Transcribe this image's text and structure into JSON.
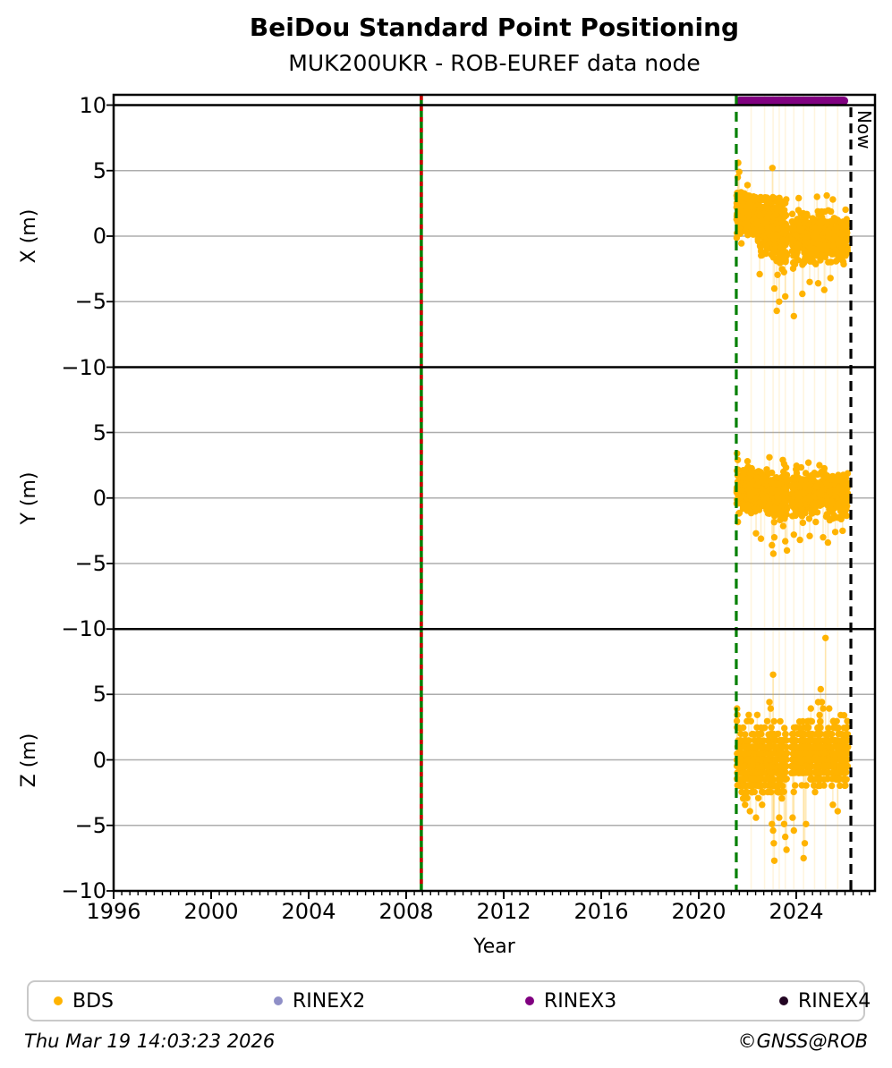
{
  "page": {
    "title": "BeiDou Standard Point Positioning",
    "subtitle": "MUK200UKR - ROB-EUREF data node"
  },
  "footer": {
    "generated": "Thu Mar 19 14:03:23 2026",
    "credit": "©GNSS@ROB"
  },
  "legend": {
    "items": [
      {
        "label": "BDS",
        "color": "#FFB300"
      },
      {
        "label": "RINEX2",
        "color": "#8F8FC7"
      },
      {
        "label": "RINEX3",
        "color": "#800080"
      },
      {
        "label": "RINEX4",
        "color": "#230523"
      }
    ]
  },
  "chart_data": {
    "type": "scatter",
    "title": "BeiDou Standard Point Positioning",
    "subtitle": "MUK200UKR - ROB-EUREF data node",
    "xlabel": "Year",
    "series_name": "BDS",
    "point_color": "#FFB300",
    "grid": "horizontal-gray",
    "grid_color": "#ADADAD",
    "x_range": [
      1995.95,
      2027.23
    ],
    "x_major_ticks": [
      1996,
      2000,
      2004,
      2008,
      2012,
      2016,
      2020,
      2024
    ],
    "x_minor_step_years": 0.33333,
    "now_label": "Now",
    "seed": 42,
    "vlines": [
      {
        "x": 2008.62,
        "color": "#008000",
        "overlay_color": "#CC0000",
        "style": "solid-green-with-red-dashes"
      },
      {
        "x": 2021.54,
        "color": "#008000",
        "style": "dashed"
      },
      {
        "x": 2026.24,
        "color": "#000000",
        "style": "dashed",
        "label": "Now"
      }
    ],
    "availability_bars": [
      {
        "series": "RINEX3",
        "color": "#800080",
        "x_start": 2021.5,
        "x_end": 2026.13,
        "y": 10.4
      }
    ],
    "faint_line_xs": [
      2022.15,
      2022.7,
      2023.05,
      2023.3,
      2023.55,
      2023.9,
      2024.3,
      2024.75,
      2025.2,
      2025.7
    ],
    "subplots": [
      {
        "ylabel": "X (m)",
        "ylim": [
          -10,
          10.75
        ],
        "yticks": [
          10,
          5,
          0,
          -5,
          -10
        ],
        "segments": [
          {
            "t0": 2021.55,
            "t1": 2021.75,
            "n": 90,
            "mean": 1.7,
            "sd": 0.8,
            "lo": -0.3,
            "hi": 3.4
          },
          {
            "t0": 2021.75,
            "t1": 2022.5,
            "n": 230,
            "mean": 1.5,
            "sd": 0.8,
            "lo": -1.8,
            "hi": 3.3
          },
          {
            "t0": 2022.5,
            "t1": 2023.05,
            "n": 170,
            "mean": 0.9,
            "sd": 1.1,
            "lo": -2.2,
            "hi": 3.2
          },
          {
            "t0": 2023.05,
            "t1": 2023.62,
            "n": 170,
            "mean": 0.3,
            "sd": 1.4,
            "lo": -3.7,
            "hi": 3.0
          },
          {
            "t0": 2023.8,
            "t1": 2024.6,
            "n": 210,
            "mean": -0.2,
            "sd": 0.9,
            "lo": -2.7,
            "hi": 2.3
          },
          {
            "t0": 2024.6,
            "t1": 2026.12,
            "n": 330,
            "mean": -0.1,
            "sd": 0.9,
            "lo": -2.5,
            "hi": 2.4
          }
        ],
        "outliers": [
          [
            2021.62,
            5.6
          ],
          [
            2021.66,
            4.9
          ],
          [
            2021.6,
            4.5
          ],
          [
            2023.02,
            5.2
          ],
          [
            2022.0,
            3.9
          ],
          [
            2023.1,
            -4.0
          ],
          [
            2023.3,
            -5.0
          ],
          [
            2023.55,
            -4.6
          ],
          [
            2023.9,
            -6.1
          ],
          [
            2024.25,
            -4.4
          ],
          [
            2024.55,
            -3.5
          ],
          [
            2024.9,
            -3.6
          ],
          [
            2025.15,
            -4.1
          ],
          [
            2025.4,
            -3.2
          ],
          [
            2024.1,
            2.9
          ],
          [
            2024.85,
            3.0
          ],
          [
            2025.25,
            3.1
          ],
          [
            2025.5,
            2.8
          ],
          [
            2023.2,
            -5.7
          ],
          [
            2022.5,
            -2.9
          ]
        ]
      },
      {
        "ylabel": "Y (m)",
        "ylim": [
          -10,
          10
        ],
        "yticks": [
          5,
          0,
          -5,
          -10
        ],
        "segments": [
          {
            "t0": 2021.55,
            "t1": 2022.6,
            "n": 300,
            "mean": 0.4,
            "sd": 0.75,
            "lo": -1.9,
            "hi": 2.6
          },
          {
            "t0": 2022.6,
            "t1": 2023.62,
            "n": 260,
            "mean": 0.2,
            "sd": 0.85,
            "lo": -2.3,
            "hi": 2.5
          },
          {
            "t0": 2023.8,
            "t1": 2026.12,
            "n": 520,
            "mean": 0.25,
            "sd": 0.75,
            "lo": -2.2,
            "hi": 2.5
          }
        ],
        "outliers": [
          [
            2021.57,
            3.4
          ],
          [
            2021.6,
            2.9
          ],
          [
            2022.0,
            2.8
          ],
          [
            2022.9,
            3.1
          ],
          [
            2023.45,
            2.9
          ],
          [
            2023.5,
            2.6
          ],
          [
            2024.5,
            2.7
          ],
          [
            2024.95,
            2.5
          ],
          [
            2022.35,
            -2.7
          ],
          [
            2022.55,
            -3.1
          ],
          [
            2023.0,
            -3.6
          ],
          [
            2023.06,
            -4.25
          ],
          [
            2023.1,
            -3.0
          ],
          [
            2023.55,
            -3.3
          ],
          [
            2023.62,
            -4.0
          ],
          [
            2023.9,
            -2.8
          ],
          [
            2024.15,
            -3.2
          ],
          [
            2024.55,
            -2.9
          ],
          [
            2025.1,
            -3.0
          ],
          [
            2025.3,
            -3.4
          ],
          [
            2025.6,
            -2.6
          ],
          [
            2025.9,
            -2.5
          ]
        ]
      },
      {
        "ylabel": "Z (m)",
        "ylim": [
          -10,
          10
        ],
        "yticks": [
          5,
          0,
          -5,
          -10
        ],
        "quantize_m": 0.49,
        "segments": [
          {
            "t0": 2021.55,
            "t1": 2023.62,
            "n": 650,
            "mean": -0.15,
            "sd": 1.2,
            "lo": -2.95,
            "hi": 2.95
          },
          {
            "t0": 2023.8,
            "t1": 2026.12,
            "n": 640,
            "mean": 0.35,
            "sd": 1.15,
            "lo": -2.46,
            "hi": 3.43
          }
        ],
        "outliers": [
          [
            2021.57,
            3.92
          ],
          [
            2021.58,
            3.43
          ],
          [
            2021.9,
            -3.43
          ],
          [
            2022.05,
            3.43
          ],
          [
            2022.1,
            -3.92
          ],
          [
            2022.35,
            -4.41
          ],
          [
            2022.4,
            3.43
          ],
          [
            2022.6,
            -3.43
          ],
          [
            2022.9,
            4.41
          ],
          [
            2022.95,
            3.92
          ],
          [
            2023.0,
            -4.9
          ],
          [
            2023.05,
            6.5
          ],
          [
            2023.05,
            -5.39
          ],
          [
            2023.08,
            -6.37
          ],
          [
            2023.1,
            -7.7
          ],
          [
            2023.3,
            -4.41
          ],
          [
            2023.5,
            -4.9
          ],
          [
            2023.55,
            -5.88
          ],
          [
            2023.6,
            -6.86
          ],
          [
            2023.85,
            -4.41
          ],
          [
            2023.9,
            -5.39
          ],
          [
            2024.3,
            -7.5
          ],
          [
            2024.35,
            -6.37
          ],
          [
            2024.4,
            -4.9
          ],
          [
            2024.6,
            3.92
          ],
          [
            2024.9,
            4.41
          ],
          [
            2025.0,
            5.39
          ],
          [
            2025.05,
            4.41
          ],
          [
            2025.1,
            3.92
          ],
          [
            2025.2,
            9.3
          ],
          [
            2025.35,
            3.92
          ],
          [
            2025.5,
            -3.43
          ],
          [
            2025.7,
            -3.92
          ]
        ]
      }
    ]
  }
}
